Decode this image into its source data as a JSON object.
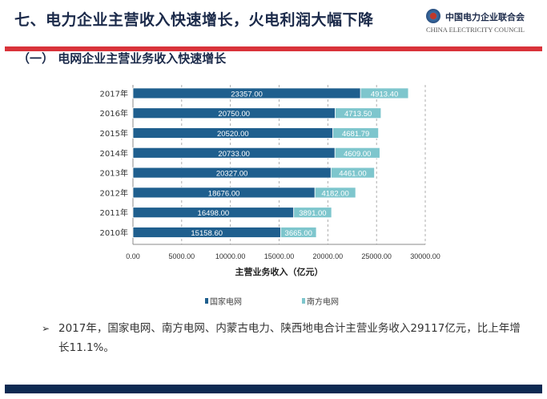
{
  "header": {
    "title": "七、电力企业主营收入快速增长，火电利润大幅下降",
    "logo_cn": "中国电力企业联合会",
    "logo_en": "CHINA ELECTRICITY COUNCIL"
  },
  "subtitle": "（一） 电网企业主营业务收入快速增长",
  "chart_data": {
    "type": "bar",
    "orientation": "horizontal",
    "stacked": true,
    "categories": [
      "2017年",
      "2016年",
      "2015年",
      "2014年",
      "2013年",
      "2012年",
      "2011年",
      "2010年"
    ],
    "series": [
      {
        "name": "国家电网",
        "color": "#1f5f8e",
        "values": [
          23357.0,
          20750.0,
          20520.0,
          20733.0,
          20327.0,
          18676.0,
          16498.0,
          15158.6
        ],
        "labels": [
          "23357.00",
          "20750.00",
          "20520.00",
          "20733.00",
          "20327.00",
          "18676.00",
          "16498.00",
          "15158.60"
        ]
      },
      {
        "name": "南方电网",
        "color": "#7ec6cd",
        "values": [
          4913.4,
          4713.5,
          4681.79,
          4609.0,
          4461.0,
          4182.0,
          3891.0,
          3665.0
        ],
        "labels": [
          "4913.40",
          "4713.50",
          "4681.79",
          "4609.00",
          "4461.00",
          "4182.00",
          "3891.00",
          "3665.00"
        ]
      }
    ],
    "xlim": [
      0,
      30000
    ],
    "xticks": [
      "0.00",
      "5000.00",
      "10000.00",
      "15000.00",
      "20000.00",
      "25000.00",
      "30000.00"
    ],
    "xlabel": "主营业务收入（亿元）",
    "legend": "bottom",
    "grid": "vertical dashed"
  },
  "note": {
    "bullet": "➢",
    "text": "2017年，国家电网、南方电网、内蒙古电力、陕西地电合计主营业务收入29117亿元，比上年增长11.1%。"
  }
}
